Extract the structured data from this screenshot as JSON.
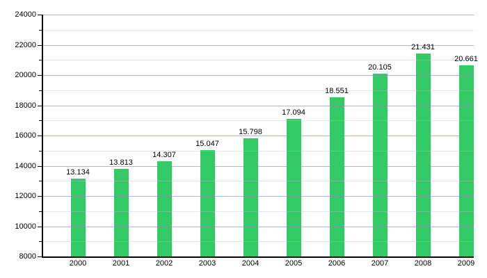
{
  "chart_data": {
    "type": "bar",
    "title": "",
    "xlabel": "",
    "ylabel": "",
    "categories": [
      "2000",
      "2001",
      "2002",
      "2003",
      "2004",
      "2005",
      "2006",
      "2007",
      "2008",
      "2009"
    ],
    "values": [
      13134,
      13813,
      14307,
      15047,
      15798,
      17094,
      18551,
      20105,
      21431,
      20661
    ],
    "bar_labels": [
      "13.134",
      "13.813",
      "14.307",
      "15.047",
      "15.798",
      "17.094",
      "18.551",
      "20.105",
      "21.431",
      "20.661"
    ],
    "ylim": [
      8000,
      24000
    ],
    "y_major_tick_step": 2000,
    "y_minor_tick_step": 1000,
    "y_tick_labels": [
      "8000",
      "10000",
      "12000",
      "14000",
      "16000",
      "18000",
      "20000",
      "22000",
      "24000"
    ],
    "grid": "horizontal-major-and-minor",
    "legend_position": "none",
    "colors": {
      "bar": "#33cb65",
      "major_grid": "#b5b5ce",
      "minor_grid": "#e9e9f3",
      "axis": "#000000",
      "text": "#000000",
      "background": "#ffffff"
    }
  }
}
